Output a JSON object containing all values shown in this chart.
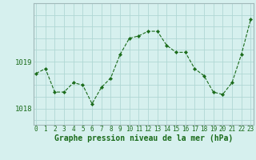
{
  "x": [
    0,
    1,
    2,
    3,
    4,
    5,
    6,
    7,
    8,
    9,
    10,
    11,
    12,
    13,
    14,
    15,
    16,
    17,
    18,
    19,
    20,
    21,
    22,
    23
  ],
  "y": [
    1018.75,
    1018.85,
    1018.35,
    1018.35,
    1018.55,
    1018.5,
    1018.1,
    1018.45,
    1018.65,
    1019.15,
    1019.5,
    1019.55,
    1019.65,
    1019.65,
    1019.35,
    1019.2,
    1019.2,
    1018.85,
    1018.7,
    1018.35,
    1018.3,
    1018.55,
    1019.15,
    1019.9
  ],
  "line_color": "#1a6b1a",
  "marker_color": "#1a6b1a",
  "bg_color": "#d6f0ee",
  "grid_color": "#b0d8d4",
  "xlabel": "Graphe pression niveau de la mer (hPa)",
  "xlabel_fontsize": 7.0,
  "tick_fontsize": 5.5,
  "ytick_fontsize": 6.5,
  "tick_color": "#1a6b1a",
  "yticks": [
    1018,
    1019
  ],
  "ylim": [
    1017.65,
    1020.25
  ],
  "xlim": [
    -0.3,
    23.3
  ]
}
